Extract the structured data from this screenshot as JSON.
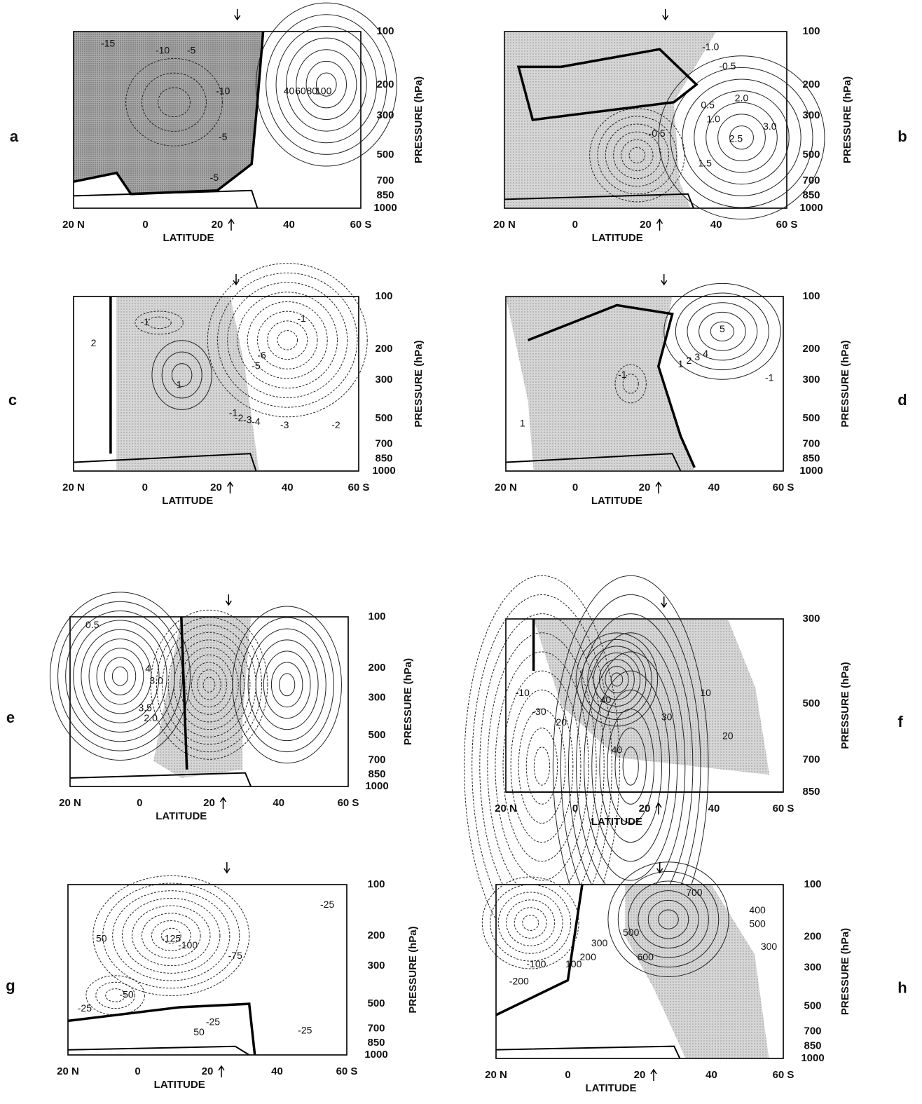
{
  "panels": [
    {
      "letter": "a",
      "x_label": "LATITUDE",
      "y_label": "PRESSURE (hPa)",
      "x_ticks": [
        "20 N",
        "0",
        "20",
        "40",
        "60 S"
      ],
      "y_ticks": [
        "100",
        "200",
        "300",
        "500",
        "700",
        "850",
        "1000"
      ],
      "contour_labels": [
        "-15",
        "-10",
        "-5",
        "-10",
        "-5",
        "-5",
        "40",
        "60",
        "80",
        "100"
      ]
    },
    {
      "letter": "b",
      "x_label": "LATITUDE",
      "y_label": "PRESSURE (hPa)",
      "x_ticks": [
        "20 N",
        "0",
        "20",
        "40",
        "60 S"
      ],
      "y_ticks": [
        "100",
        "200",
        "300",
        "500",
        "700",
        "850",
        "1000"
      ],
      "contour_labels": [
        "-1.0",
        "-0.5",
        "-0.5",
        "0.5",
        "1.0",
        "1.5",
        "2.0",
        "2.5",
        "3.0"
      ]
    },
    {
      "letter": "c",
      "x_label": "LATITUDE",
      "y_label": "PRESSURE (hPa)",
      "x_ticks": [
        "20 N",
        "0",
        "20",
        "40",
        "60 S"
      ],
      "y_ticks": [
        "100",
        "200",
        "300",
        "500",
        "700",
        "850",
        "1000"
      ],
      "contour_labels": [
        "2",
        "-1",
        "1",
        "-1",
        "-5",
        "-6",
        "-1",
        "-2",
        "-3",
        "-4",
        "-3",
        "-2"
      ]
    },
    {
      "letter": "d",
      "x_label": "LATITUDE",
      "y_label": "PRESSURE (hPa)",
      "x_ticks": [
        "20 N",
        "0",
        "20",
        "40",
        "60 S"
      ],
      "y_ticks": [
        "100",
        "200",
        "300",
        "500",
        "700",
        "850",
        "1000"
      ],
      "contour_labels": [
        "1",
        "-1",
        "1",
        "2",
        "3",
        "4",
        "5",
        "-1"
      ]
    },
    {
      "letter": "e",
      "x_label": "LATITUDE",
      "y_label": "PRESSURE (hPa)",
      "x_ticks": [
        "20 N",
        "0",
        "20",
        "40",
        "60 S"
      ],
      "y_ticks": [
        "100",
        "200",
        "300",
        "500",
        "700",
        "850",
        "1000"
      ],
      "contour_labels": [
        "0.5",
        "4",
        "3.0",
        "3.5",
        "2.0"
      ]
    },
    {
      "letter": "f",
      "x_label": "LATITUDE",
      "y_label": "PRESSURE (hPa)",
      "x_ticks": [
        "20 N",
        "0",
        "20",
        "40",
        "60 S"
      ],
      "y_ticks": [
        "300",
        "500",
        "700",
        "850"
      ],
      "contour_labels": [
        "-10",
        "-30",
        "20",
        "40",
        "40",
        "10",
        "30",
        "20"
      ]
    },
    {
      "letter": "g",
      "x_label": "LATITUDE",
      "y_label": "PRESSURE (hPa)",
      "x_ticks": [
        "20 N",
        "0",
        "20",
        "40",
        "60 S"
      ],
      "y_ticks": [
        "100",
        "200",
        "300",
        "500",
        "700",
        "850",
        "1000"
      ],
      "contour_labels": [
        "-25",
        "50",
        "-125",
        "-100",
        "-75",
        "-25",
        "-50",
        "-25",
        "50",
        "-25"
      ]
    },
    {
      "letter": "h",
      "x_label": "LATITUDE",
      "y_label": "PRESSURE (hPa)",
      "x_ticks": [
        "20 N",
        "0",
        "20",
        "40",
        "60 S"
      ],
      "y_ticks": [
        "100",
        "200",
        "300",
        "500",
        "700",
        "850",
        "1000"
      ],
      "contour_labels": [
        "700",
        "500",
        "600",
        "300",
        "200",
        "100",
        "-100",
        "-200",
        "400",
        "500",
        "300"
      ]
    }
  ]
}
